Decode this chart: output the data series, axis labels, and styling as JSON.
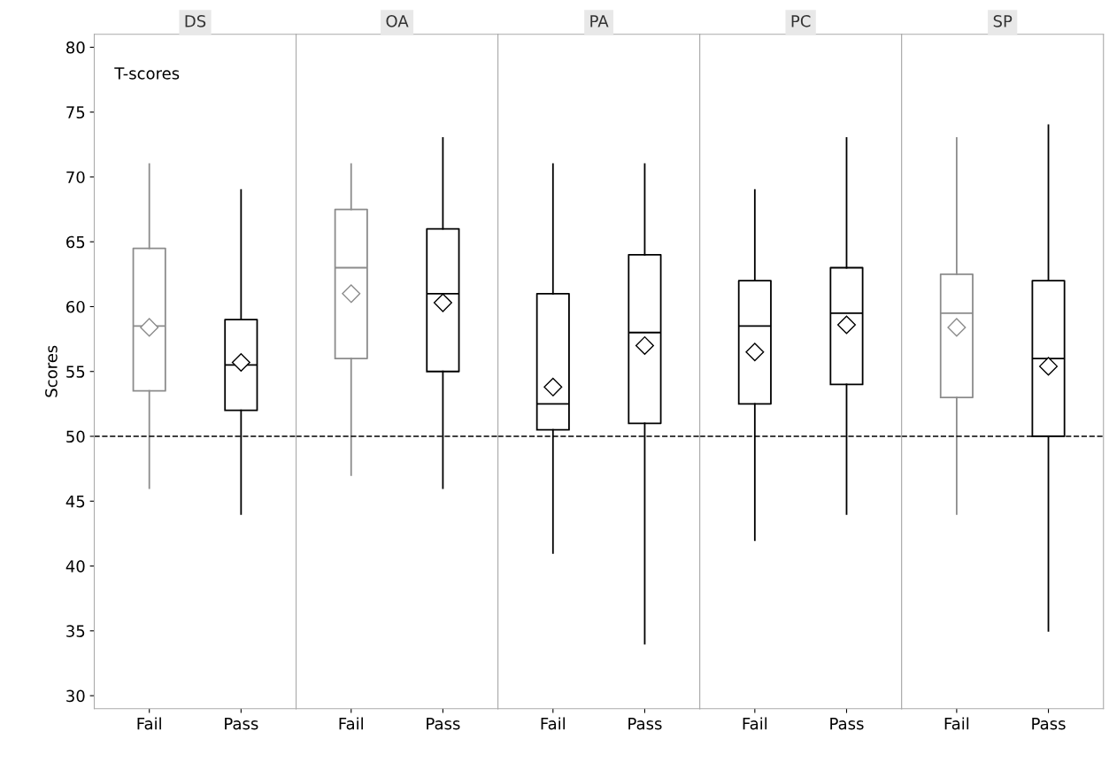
{
  "chart_data": [
    {
      "type": "box",
      "title": "DS",
      "ylabel": "Scores",
      "categories": [
        "Fail",
        "Pass"
      ],
      "colors": [
        "#8c8c8c",
        "#000000"
      ],
      "ylim": [
        29,
        81
      ],
      "yticks": [
        30,
        35,
        40,
        45,
        50,
        55,
        60,
        65,
        70,
        75,
        80
      ],
      "annotations": [
        "T-scores"
      ],
      "ref_lines": [
        {
          "axis": "y",
          "value": 50,
          "line_style": "dashed",
          "color": "#000000"
        }
      ],
      "marker": "diamond",
      "grid": false,
      "boxes": [
        {
          "low": 46,
          "q1": 53.5,
          "median": 58.5,
          "q3": 64.5,
          "high": 71,
          "mean": 58.4
        },
        {
          "low": 44,
          "q1": 52,
          "median": 55.5,
          "q3": 59,
          "high": 69,
          "mean": 55.7
        }
      ]
    },
    {
      "type": "box",
      "title": "OA",
      "categories": [
        "Fail",
        "Pass"
      ],
      "colors": [
        "#8c8c8c",
        "#000000"
      ],
      "ylim": [
        29,
        81
      ],
      "yticks": [
        30,
        35,
        40,
        45,
        50,
        55,
        60,
        65,
        70,
        75,
        80
      ],
      "tick_labels": "x",
      "ref_lines": [
        {
          "axis": "y",
          "value": 50,
          "line_style": "dashed",
          "color": "#000000"
        }
      ],
      "marker": "diamond",
      "grid": false,
      "boxes": [
        {
          "low": 47,
          "q1": 56,
          "median": 63,
          "q3": 67.5,
          "high": 71,
          "mean": 61
        },
        {
          "low": 46,
          "q1": 55,
          "median": 61,
          "q3": 66,
          "high": 73,
          "mean": 60.3
        }
      ]
    },
    {
      "type": "box",
      "title": "PA",
      "categories": [
        "Fail",
        "Pass"
      ],
      "colors": [
        "#000000",
        "#000000"
      ],
      "ylim": [
        29,
        81
      ],
      "yticks": [
        30,
        35,
        40,
        45,
        50,
        55,
        60,
        65,
        70,
        75,
        80
      ],
      "tick_labels": "x",
      "ref_lines": [
        {
          "axis": "y",
          "value": 50,
          "line_style": "dashed",
          "color": "#000000"
        }
      ],
      "marker": "diamond",
      "grid": false,
      "boxes": [
        {
          "low": 41,
          "q1": 50.5,
          "median": 52.5,
          "q3": 61,
          "high": 71,
          "mean": 53.8
        },
        {
          "low": 34,
          "q1": 51,
          "median": 58,
          "q3": 64,
          "high": 71,
          "mean": 57
        }
      ]
    },
    {
      "type": "box",
      "title": "PC",
      "categories": [
        "Fail",
        "Pass"
      ],
      "colors": [
        "#000000",
        "#000000"
      ],
      "ylim": [
        29,
        81
      ],
      "yticks": [
        30,
        35,
        40,
        45,
        50,
        55,
        60,
        65,
        70,
        75,
        80
      ],
      "tick_labels": "x",
      "ref_lines": [
        {
          "axis": "y",
          "value": 50,
          "line_style": "dashed",
          "color": "#000000"
        }
      ],
      "marker": "diamond",
      "grid": false,
      "boxes": [
        {
          "low": 42,
          "q1": 52.5,
          "median": 58.5,
          "q3": 62,
          "high": 69,
          "mean": 56.5
        },
        {
          "low": 44,
          "q1": 54,
          "median": 59.5,
          "q3": 63,
          "high": 73,
          "mean": 58.6
        }
      ]
    },
    {
      "type": "box",
      "title": "SP",
      "categories": [
        "Fail",
        "Pass"
      ],
      "colors": [
        "#8c8c8c",
        "#000000"
      ],
      "ylim": [
        29,
        81
      ],
      "yticks": [
        30,
        35,
        40,
        45,
        50,
        55,
        60,
        65,
        70,
        75,
        80
      ],
      "tick_labels": "x",
      "ref_lines": [
        {
          "axis": "y",
          "value": 50,
          "line_style": "dashed",
          "color": "#000000"
        }
      ],
      "marker": "diamond",
      "grid": false,
      "boxes": [
        {
          "low": 44,
          "q1": 53,
          "median": 59.5,
          "q3": 62.5,
          "high": 73,
          "mean": 58.4
        },
        {
          "low": 35,
          "q1": 50,
          "median": 56,
          "q3": 62,
          "high": 74,
          "mean": 55.4
        }
      ]
    }
  ]
}
